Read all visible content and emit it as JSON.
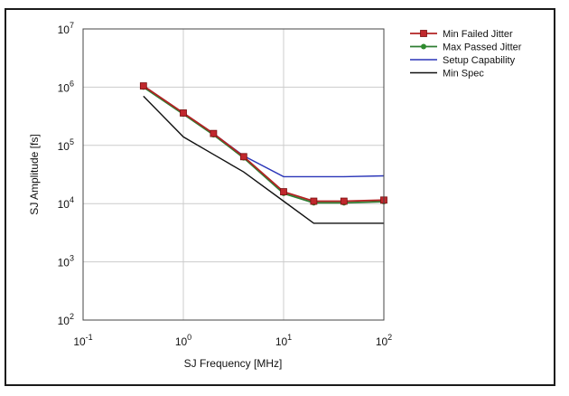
{
  "chart_data": {
    "type": "line",
    "xlabel": "SJ Frequency [MHz]",
    "ylabel": "SJ Amplitude [fs]",
    "x_scale": "log",
    "y_scale": "log",
    "xlim": [
      0.1,
      100
    ],
    "ylim": [
      100,
      10000000
    ],
    "grid": true,
    "legend_position": "right",
    "x_ticks": [
      {
        "base": "10",
        "exp": "-1",
        "value": 0.1
      },
      {
        "base": "10",
        "exp": "0",
        "value": 1
      },
      {
        "base": "10",
        "exp": "1",
        "value": 10
      },
      {
        "base": "10",
        "exp": "2",
        "value": 100
      }
    ],
    "y_ticks": [
      {
        "base": "10",
        "exp": "2",
        "value": 100
      },
      {
        "base": "10",
        "exp": "3",
        "value": 1000
      },
      {
        "base": "10",
        "exp": "4",
        "value": 10000
      },
      {
        "base": "10",
        "exp": "5",
        "value": 100000
      },
      {
        "base": "10",
        "exp": "6",
        "value": 1000000
      },
      {
        "base": "10",
        "exp": "7",
        "value": 10000000
      }
    ],
    "series": [
      {
        "name": "Min Failed Jitter",
        "color": "#b22222",
        "marker": "square",
        "marker_color": "#c0282d",
        "x": [
          0.4,
          1,
          2,
          4,
          10,
          20,
          40,
          100
        ],
        "y": [
          1050000,
          360000,
          160000,
          64000,
          16000,
          11000,
          11000,
          11500
        ]
      },
      {
        "name": "Max Passed Jitter",
        "color": "#2e7d32",
        "marker": "circle",
        "marker_color": "#2e8b2e",
        "x": [
          0.4,
          1,
          2,
          4,
          10,
          20,
          40,
          100
        ],
        "y": [
          1000000,
          345000,
          152000,
          61000,
          15000,
          10300,
          10300,
          10800
        ]
      },
      {
        "name": "Setup Capability",
        "color": "#2a35b8",
        "marker": "none",
        "x": [
          0.4,
          1,
          2,
          4,
          10,
          20,
          40,
          100
        ],
        "y": [
          1050000,
          360000,
          160000,
          66000,
          29000,
          29000,
          29000,
          30000
        ]
      },
      {
        "name": "Min Spec",
        "color": "#111111",
        "marker": "none",
        "x": [
          0.4,
          1,
          2,
          4,
          10,
          20,
          100
        ],
        "y": [
          700000,
          140000,
          70000,
          35000,
          11000,
          4600,
          4600
        ]
      }
    ]
  }
}
